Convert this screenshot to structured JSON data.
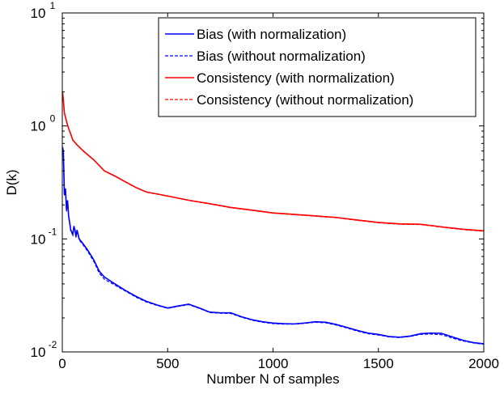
{
  "chart_data": {
    "type": "line",
    "title": "",
    "xlabel": "Number N of samples",
    "ylabel": "D(k)",
    "xlim": [
      0,
      2000
    ],
    "ylim": [
      0.01,
      10
    ],
    "yscale": "log",
    "grid": false,
    "legend_position": "top-right",
    "xticks": [
      {
        "value": 0,
        "label": "0"
      },
      {
        "value": 500,
        "label": "500"
      },
      {
        "value": 1000,
        "label": "1000"
      },
      {
        "value": 1500,
        "label": "1500"
      },
      {
        "value": 2000,
        "label": "2000"
      }
    ],
    "yticks": [
      {
        "value": 0.01,
        "base": "10",
        "exp": "-2"
      },
      {
        "value": 0.1,
        "base": "10",
        "exp": "-1"
      },
      {
        "value": 1,
        "base": "10",
        "exp": "0"
      },
      {
        "value": 10,
        "base": "10",
        "exp": "1"
      }
    ],
    "series": [
      {
        "name": "Bias (with normalization)",
        "color": "#0000ff",
        "dash": "solid",
        "points": [
          [
            1,
            0.65
          ],
          [
            5,
            0.6
          ],
          [
            10,
            0.25
          ],
          [
            15,
            0.28
          ],
          [
            20,
            0.18
          ],
          [
            25,
            0.22
          ],
          [
            30,
            0.16
          ],
          [
            35,
            0.14
          ],
          [
            40,
            0.12
          ],
          [
            45,
            0.115
          ],
          [
            50,
            0.11
          ],
          [
            55,
            0.13
          ],
          [
            60,
            0.12
          ],
          [
            65,
            0.105
          ],
          [
            70,
            0.12
          ],
          [
            75,
            0.11
          ],
          [
            80,
            0.1
          ],
          [
            90,
            0.095
          ],
          [
            100,
            0.09
          ],
          [
            120,
            0.08
          ],
          [
            150,
            0.065
          ],
          [
            175,
            0.052
          ],
          [
            200,
            0.046
          ],
          [
            250,
            0.04
          ],
          [
            300,
            0.035
          ],
          [
            350,
            0.031
          ],
          [
            400,
            0.028
          ],
          [
            450,
            0.026
          ],
          [
            500,
            0.0245
          ],
          [
            550,
            0.0255
          ],
          [
            600,
            0.0265
          ],
          [
            650,
            0.0245
          ],
          [
            700,
            0.0225
          ],
          [
            750,
            0.0222
          ],
          [
            800,
            0.0222
          ],
          [
            850,
            0.0205
          ],
          [
            900,
            0.0193
          ],
          [
            950,
            0.0185
          ],
          [
            1000,
            0.018
          ],
          [
            1050,
            0.0178
          ],
          [
            1100,
            0.0177
          ],
          [
            1150,
            0.018
          ],
          [
            1200,
            0.0185
          ],
          [
            1250,
            0.0183
          ],
          [
            1300,
            0.0175
          ],
          [
            1350,
            0.0165
          ],
          [
            1400,
            0.0155
          ],
          [
            1450,
            0.0147
          ],
          [
            1500,
            0.0143
          ],
          [
            1550,
            0.0137
          ],
          [
            1600,
            0.0135
          ],
          [
            1650,
            0.0138
          ],
          [
            1700,
            0.0145
          ],
          [
            1750,
            0.0147
          ],
          [
            1800,
            0.0146
          ],
          [
            1850,
            0.0136
          ],
          [
            1900,
            0.0127
          ],
          [
            1950,
            0.0121
          ],
          [
            2000,
            0.0118
          ]
        ]
      },
      {
        "name": "Bias (without normalization)",
        "color": "#0000ff",
        "dash": "dashed",
        "points": [
          [
            1,
            0.63
          ],
          [
            5,
            0.58
          ],
          [
            10,
            0.24
          ],
          [
            15,
            0.27
          ],
          [
            20,
            0.175
          ],
          [
            25,
            0.215
          ],
          [
            30,
            0.155
          ],
          [
            35,
            0.138
          ],
          [
            40,
            0.118
          ],
          [
            45,
            0.113
          ],
          [
            50,
            0.108
          ],
          [
            55,
            0.128
          ],
          [
            60,
            0.118
          ],
          [
            65,
            0.103
          ],
          [
            70,
            0.118
          ],
          [
            75,
            0.108
          ],
          [
            80,
            0.098
          ],
          [
            90,
            0.093
          ],
          [
            100,
            0.088
          ],
          [
            120,
            0.078
          ],
          [
            150,
            0.063
          ],
          [
            175,
            0.05
          ],
          [
            200,
            0.044
          ],
          [
            250,
            0.039
          ],
          [
            300,
            0.0345
          ],
          [
            350,
            0.0305
          ],
          [
            400,
            0.0276
          ],
          [
            450,
            0.0258
          ],
          [
            500,
            0.0243
          ],
          [
            550,
            0.0253
          ],
          [
            600,
            0.0262
          ],
          [
            650,
            0.0243
          ],
          [
            700,
            0.0223
          ],
          [
            750,
            0.022
          ],
          [
            800,
            0.0219
          ],
          [
            850,
            0.0203
          ],
          [
            900,
            0.0191
          ],
          [
            950,
            0.0183
          ],
          [
            1000,
            0.0178
          ],
          [
            1050,
            0.0176
          ],
          [
            1100,
            0.0176
          ],
          [
            1150,
            0.0179
          ],
          [
            1200,
            0.0183
          ],
          [
            1250,
            0.0181
          ],
          [
            1300,
            0.0173
          ],
          [
            1350,
            0.0163
          ],
          [
            1400,
            0.0153
          ],
          [
            1450,
            0.0145
          ],
          [
            1500,
            0.0141
          ],
          [
            1550,
            0.0136
          ],
          [
            1600,
            0.0134
          ],
          [
            1650,
            0.0137
          ],
          [
            1700,
            0.0143
          ],
          [
            1750,
            0.0144
          ],
          [
            1800,
            0.0142
          ],
          [
            1850,
            0.0133
          ],
          [
            1900,
            0.0125
          ],
          [
            1950,
            0.012
          ],
          [
            2000,
            0.0117
          ]
        ]
      },
      {
        "name": "Consistency (with normalization)",
        "color": "#ff0000",
        "dash": "solid",
        "points": [
          [
            1,
            2.0
          ],
          [
            5,
            1.7
          ],
          [
            10,
            1.3
          ],
          [
            20,
            1.1
          ],
          [
            30,
            0.95
          ],
          [
            40,
            0.85
          ],
          [
            50,
            0.75
          ],
          [
            70,
            0.68
          ],
          [
            100,
            0.6
          ],
          [
            150,
            0.5
          ],
          [
            200,
            0.4
          ],
          [
            250,
            0.36
          ],
          [
            300,
            0.32
          ],
          [
            350,
            0.285
          ],
          [
            400,
            0.26
          ],
          [
            450,
            0.25
          ],
          [
            500,
            0.24
          ],
          [
            600,
            0.22
          ],
          [
            700,
            0.205
          ],
          [
            800,
            0.19
          ],
          [
            900,
            0.18
          ],
          [
            1000,
            0.17
          ],
          [
            1100,
            0.165
          ],
          [
            1200,
            0.16
          ],
          [
            1300,
            0.155
          ],
          [
            1400,
            0.147
          ],
          [
            1500,
            0.14
          ],
          [
            1600,
            0.136
          ],
          [
            1700,
            0.135
          ],
          [
            1800,
            0.128
          ],
          [
            1900,
            0.122
          ],
          [
            2000,
            0.118
          ]
        ]
      },
      {
        "name": "Consistency (without normalization)",
        "color": "#ff0000",
        "dash": "dashed",
        "points": [
          [
            1,
            1.98
          ],
          [
            5,
            1.68
          ],
          [
            10,
            1.29
          ],
          [
            20,
            1.09
          ],
          [
            30,
            0.945
          ],
          [
            40,
            0.845
          ],
          [
            50,
            0.748
          ],
          [
            70,
            0.678
          ],
          [
            100,
            0.598
          ],
          [
            150,
            0.499
          ],
          [
            200,
            0.399
          ],
          [
            250,
            0.359
          ],
          [
            300,
            0.319
          ],
          [
            350,
            0.284
          ],
          [
            400,
            0.259
          ],
          [
            450,
            0.249
          ],
          [
            500,
            0.239
          ],
          [
            600,
            0.219
          ],
          [
            700,
            0.204
          ],
          [
            800,
            0.189
          ],
          [
            900,
            0.179
          ],
          [
            1000,
            0.169
          ],
          [
            1100,
            0.164
          ],
          [
            1200,
            0.159
          ],
          [
            1300,
            0.154
          ],
          [
            1400,
            0.146
          ],
          [
            1500,
            0.139
          ],
          [
            1600,
            0.135
          ],
          [
            1700,
            0.134
          ],
          [
            1800,
            0.127
          ],
          [
            1900,
            0.121
          ],
          [
            2000,
            0.117
          ]
        ]
      }
    ]
  }
}
